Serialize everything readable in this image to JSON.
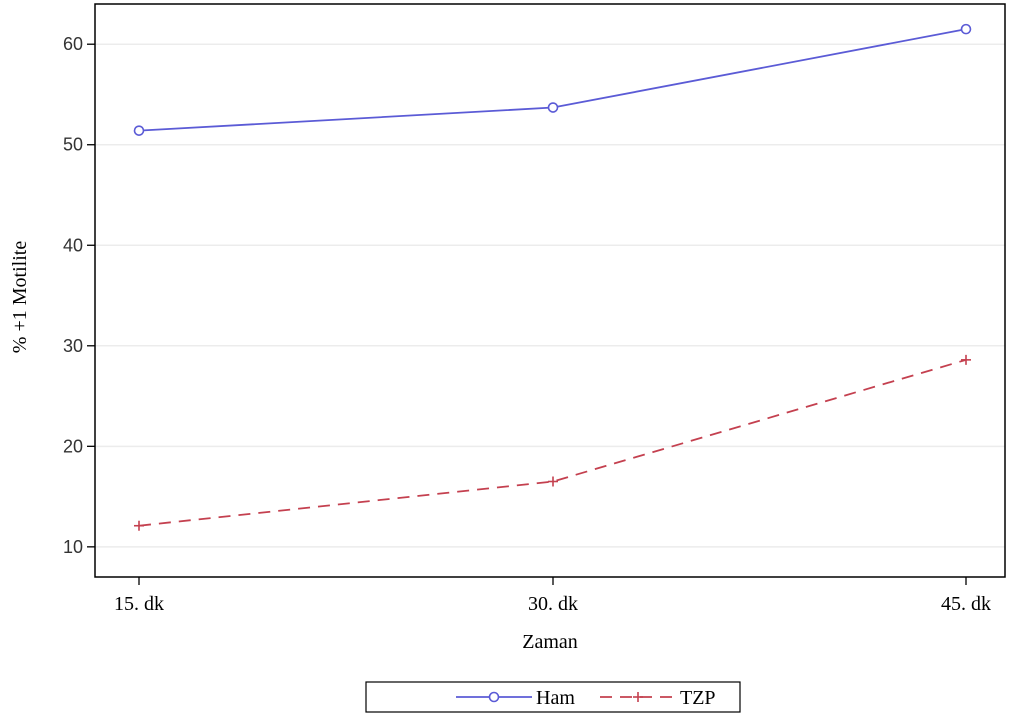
{
  "chart_data": {
    "type": "line",
    "title": "",
    "xlabel": "Zaman",
    "ylabel": "% +1 Motilite",
    "categories": [
      "15. dk",
      "30. dk",
      "45. dk"
    ],
    "ylim": [
      7,
      64
    ],
    "yticks": [
      10,
      20,
      30,
      40,
      50,
      60
    ],
    "grid": true,
    "legend_position": "bottom",
    "series": [
      {
        "name": "Ham",
        "values": [
          51.4,
          53.7,
          61.5
        ],
        "color": "#5b5bd6",
        "dash": "solid",
        "marker": "circle"
      },
      {
        "name": "TZP",
        "values": [
          12.1,
          16.5,
          28.6
        ],
        "color": "#c4404f",
        "dash": "dashed",
        "marker": "plus"
      }
    ]
  }
}
